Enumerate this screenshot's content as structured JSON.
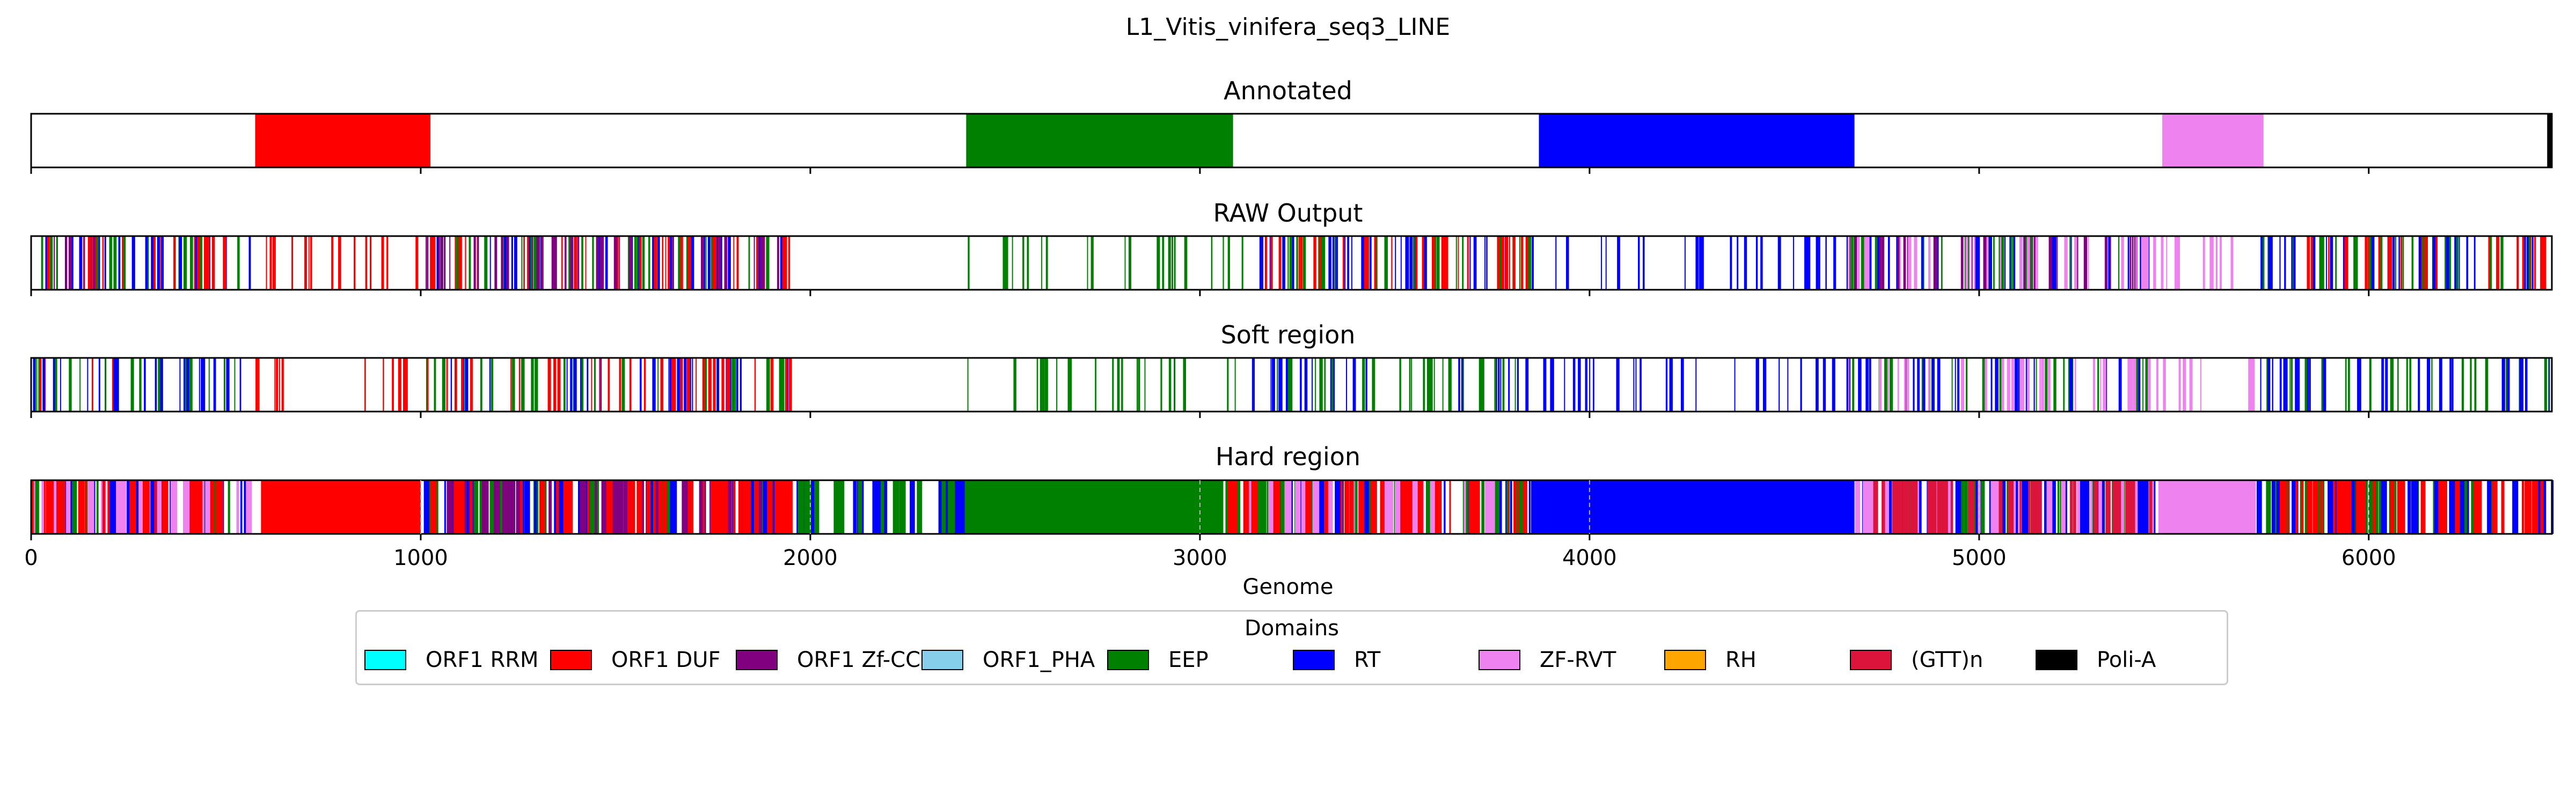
{
  "chart_data": {
    "type": "track",
    "title": "L1_Vitis_vinifera_seq3_LINE",
    "xlabel": "Genome",
    "xlim": [
      0,
      6470
    ],
    "xticks": [
      0,
      1000,
      2000,
      3000,
      4000,
      5000,
      6000
    ],
    "legend_title": "Domains",
    "legend_placement": "bottom-center",
    "domains": [
      {
        "name": "ORF1 RRM",
        "color": "#00ffff"
      },
      {
        "name": "ORF1 DUF",
        "color": "#ff0000"
      },
      {
        "name": "ORF1 Zf-CCHC",
        "color": "#800080"
      },
      {
        "name": "ORF1_PHA",
        "color": "#87ceeb"
      },
      {
        "name": "EEP",
        "color": "#008000"
      },
      {
        "name": "RT",
        "color": "#0000ff"
      },
      {
        "name": "ZF-RVT",
        "color": "#ee82ee"
      },
      {
        "name": "RH",
        "color": "#ffa500"
      },
      {
        "name": "(GTT)n",
        "color": "#dc143c"
      },
      {
        "name": "Poli-A",
        "color": "#000000"
      }
    ],
    "tracks": [
      {
        "title": "Annotated",
        "segments": [
          {
            "domain": "ORF1 DUF",
            "start": 575,
            "end": 1025
          },
          {
            "domain": "EEP",
            "start": 2400,
            "end": 3085
          },
          {
            "domain": "RT",
            "start": 3870,
            "end": 4680
          },
          {
            "domain": "ZF-RVT",
            "start": 5470,
            "end": 5730
          },
          {
            "domain": "Poli-A",
            "start": 6458,
            "end": 6470
          }
        ]
      },
      {
        "title": "RAW Output",
        "style": "stripes",
        "segments": [
          {
            "domain": "ORF1 DUF",
            "start": 0,
            "end": 230
          },
          {
            "domain": "EEP",
            "start": 0,
            "end": 230
          },
          {
            "domain": "RT",
            "start": 0,
            "end": 230
          },
          {
            "domain": "ORF1 Zf-CCHC",
            "start": 0,
            "end": 230
          },
          {
            "domain": "EEP",
            "start": 230,
            "end": 560
          },
          {
            "domain": "RT",
            "start": 230,
            "end": 560
          },
          {
            "domain": "ORF1 DUF",
            "start": 230,
            "end": 560
          },
          {
            "domain": "ORF1 DUF",
            "start": 560,
            "end": 1000
          },
          {
            "domain": "EEP",
            "start": 1000,
            "end": 1950
          },
          {
            "domain": "RT",
            "start": 1000,
            "end": 1950
          },
          {
            "domain": "ORF1 DUF",
            "start": 1000,
            "end": 1950
          },
          {
            "domain": "ORF1 Zf-CCHC",
            "start": 1000,
            "end": 1950
          },
          {
            "domain": "EEP",
            "start": 2400,
            "end": 3100
          },
          {
            "domain": "RT",
            "start": 3100,
            "end": 3850
          },
          {
            "domain": "EEP",
            "start": 3100,
            "end": 3850
          },
          {
            "domain": "ORF1 DUF",
            "start": 3100,
            "end": 3850
          },
          {
            "domain": "RT",
            "start": 3850,
            "end": 4650
          },
          {
            "domain": "EEP",
            "start": 4650,
            "end": 5450
          },
          {
            "domain": "RT",
            "start": 4650,
            "end": 5450
          },
          {
            "domain": "ORF1 Zf-CCHC",
            "start": 4650,
            "end": 5450
          },
          {
            "domain": "ZF-RVT",
            "start": 4650,
            "end": 5450
          },
          {
            "domain": "ZF-RVT",
            "start": 5450,
            "end": 5720
          },
          {
            "domain": "EEP",
            "start": 5720,
            "end": 6470
          },
          {
            "domain": "RT",
            "start": 5720,
            "end": 6470
          },
          {
            "domain": "ORF1 DUF",
            "start": 5720,
            "end": 6470
          }
        ]
      },
      {
        "title": "Soft region",
        "style": "stripes",
        "segments": [
          {
            "domain": "ORF1 DUF",
            "start": 0,
            "end": 230
          },
          {
            "domain": "EEP",
            "start": 0,
            "end": 230
          },
          {
            "domain": "RT",
            "start": 0,
            "end": 230
          },
          {
            "domain": "EEP",
            "start": 230,
            "end": 560
          },
          {
            "domain": "RT",
            "start": 230,
            "end": 560
          },
          {
            "domain": "ORF1 DUF",
            "start": 560,
            "end": 1000
          },
          {
            "domain": "EEP",
            "start": 1000,
            "end": 1950
          },
          {
            "domain": "RT",
            "start": 1000,
            "end": 1950
          },
          {
            "domain": "ORF1 DUF",
            "start": 1000,
            "end": 1950
          },
          {
            "domain": "EEP",
            "start": 2400,
            "end": 3100
          },
          {
            "domain": "RT",
            "start": 3100,
            "end": 3850
          },
          {
            "domain": "EEP",
            "start": 3100,
            "end": 3850
          },
          {
            "domain": "RT",
            "start": 3850,
            "end": 4650
          },
          {
            "domain": "EEP",
            "start": 4650,
            "end": 5450
          },
          {
            "domain": "RT",
            "start": 4650,
            "end": 5450
          },
          {
            "domain": "ZF-RVT",
            "start": 4650,
            "end": 5450
          },
          {
            "domain": "ZF-RVT",
            "start": 5450,
            "end": 5720
          },
          {
            "domain": "EEP",
            "start": 5720,
            "end": 6470
          },
          {
            "domain": "RT",
            "start": 5720,
            "end": 6470
          }
        ]
      },
      {
        "title": "Hard region",
        "style": "mixed",
        "segments": [
          {
            "domain": "EEP",
            "start": 0,
            "end": 560
          },
          {
            "domain": "RT",
            "start": 0,
            "end": 560
          },
          {
            "domain": "ZF-RVT",
            "start": 0,
            "end": 560
          },
          {
            "domain": "ORF1 DUF",
            "start": 0,
            "end": 560
          },
          {
            "domain": "ORF1 DUF",
            "start": 590,
            "end": 1000
          },
          {
            "domain": "EEP",
            "start": 1000,
            "end": 1950
          },
          {
            "domain": "RT",
            "start": 1000,
            "end": 1950
          },
          {
            "domain": "ORF1 Zf-CCHC",
            "start": 1000,
            "end": 1950
          },
          {
            "domain": "ORF1 DUF",
            "start": 1000,
            "end": 1950
          },
          {
            "domain": "RT",
            "start": 1950,
            "end": 2420
          },
          {
            "domain": "EEP",
            "start": 1950,
            "end": 2420
          },
          {
            "domain": "EEP",
            "start": 2420,
            "end": 3060
          },
          {
            "domain": "RT",
            "start": 3060,
            "end": 3850
          },
          {
            "domain": "EEP",
            "start": 3060,
            "end": 3850
          },
          {
            "domain": "ZF-RVT",
            "start": 3060,
            "end": 3850
          },
          {
            "domain": "ORF1 DUF",
            "start": 3060,
            "end": 3850
          },
          {
            "domain": "RT",
            "start": 3850,
            "end": 4680
          },
          {
            "domain": "EEP",
            "start": 4680,
            "end": 5460
          },
          {
            "domain": "RT",
            "start": 4680,
            "end": 5460
          },
          {
            "domain": "ZF-RVT",
            "start": 4680,
            "end": 5460
          },
          {
            "domain": "(GTT)n",
            "start": 4680,
            "end": 5460
          },
          {
            "domain": "ZF-RVT",
            "start": 5460,
            "end": 5710
          },
          {
            "domain": "EEP",
            "start": 5710,
            "end": 6470
          },
          {
            "domain": "RT",
            "start": 5710,
            "end": 6470
          },
          {
            "domain": "ORF1 DUF",
            "start": 5710,
            "end": 6470
          }
        ]
      }
    ]
  }
}
